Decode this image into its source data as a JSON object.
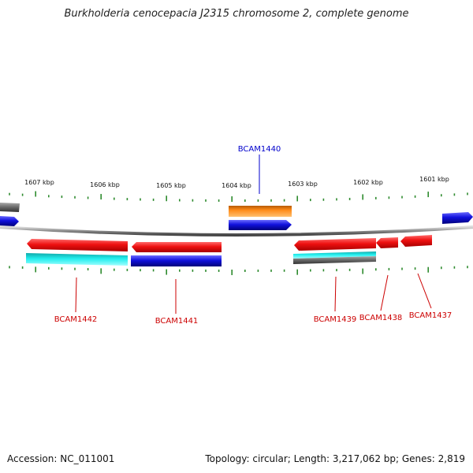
{
  "title": "Burkholderia cenocepacia J2315 chromosome 2, complete genome",
  "footer": {
    "accession": "Accession: NC_011001",
    "summary": "Topology: circular; Length: 3,217,062 bp; Genes: 2,819"
  },
  "scale_labels": [
    "1607 kbp",
    "1606 kbp",
    "1605 kbp",
    "1604 kbp",
    "1603 kbp",
    "1602 kbp",
    "1601 kbp"
  ],
  "gene_labels": [
    {
      "name": "BCAM1440",
      "color": "#0000cc"
    },
    {
      "name": "BCAM1442",
      "color": "#cc0000"
    },
    {
      "name": "BCAM1441",
      "color": "#cc0000"
    },
    {
      "name": "BCAM1439",
      "color": "#cc0000"
    },
    {
      "name": "BCAM1438",
      "color": "#cc0000"
    },
    {
      "name": "BCAM1437",
      "color": "#cc0000"
    }
  ],
  "colors": {
    "backbone": "#8a8a8a",
    "ticks": "#2e8b2e",
    "red": "#ee1111",
    "blue": "#1111dd",
    "orange": "#ff8c1a",
    "cyan": "#22eeee",
    "gray": "#666666"
  }
}
